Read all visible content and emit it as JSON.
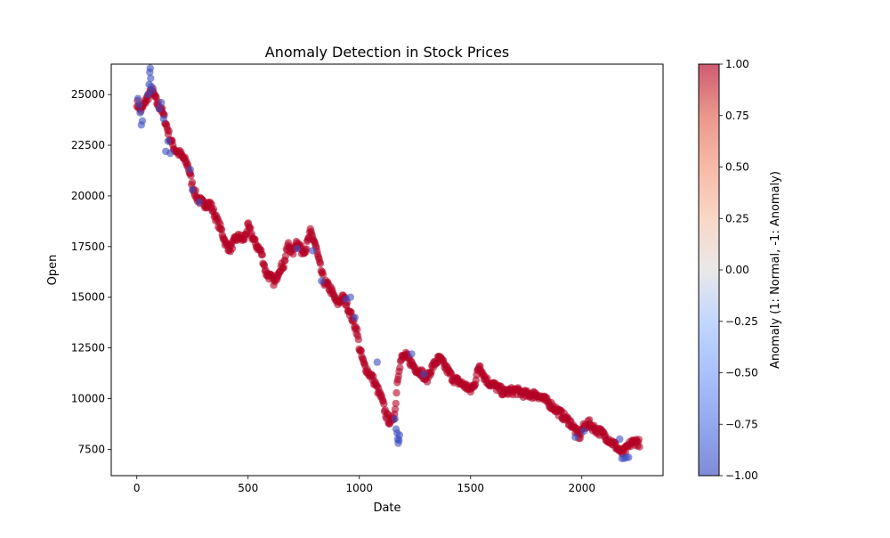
{
  "chart_data": {
    "type": "scatter",
    "title": "Anomaly Detection in Stock Prices",
    "xlabel": "Date",
    "ylabel": "Open",
    "xlim": [
      -115,
      2365
    ],
    "ylim": [
      6200,
      26500
    ],
    "x_ticks": [
      0,
      500,
      1000,
      1500,
      2000
    ],
    "y_ticks": [
      7500,
      10000,
      12500,
      15000,
      17500,
      20000,
      22500,
      25000
    ],
    "x_tick_labels": [
      "0",
      "500",
      "1000",
      "1500",
      "2000"
    ],
    "y_tick_labels": [
      "7500",
      "10000",
      "12500",
      "15000",
      "17500",
      "20000",
      "22500",
      "25000"
    ],
    "grid": false,
    "colormap": "coolwarm",
    "point_alpha": 0.6,
    "colorbar": {
      "label": "Anomaly (1: Normal, -1: Anomaly)",
      "range": [
        -1,
        1
      ],
      "ticks": [
        1.0,
        0.75,
        0.5,
        0.25,
        0.0,
        -0.25,
        -0.5,
        -0.75,
        -1.0
      ],
      "tick_labels": [
        "1.00",
        "0.75",
        "0.50",
        "0.25",
        "0.00",
        "−0.25",
        "−0.50",
        "−0.75",
        "−1.00"
      ]
    },
    "colors": {
      "normal": "#b40426",
      "anomaly": "#3b4cc0"
    },
    "series": [
      {
        "anomaly_value": 1,
        "trend_x": [
          0,
          20,
          40,
          55,
          70,
          90,
          110,
          130,
          150,
          170,
          200,
          230,
          250,
          270,
          300,
          330,
          360,
          380,
          400,
          420,
          440,
          460,
          480,
          500,
          530,
          560,
          580,
          600,
          620,
          640,
          660,
          680,
          700,
          720,
          740,
          760,
          780,
          800,
          820,
          840,
          870,
          900,
          930,
          960,
          990,
          1000,
          1020,
          1040,
          1060,
          1080,
          1100,
          1120,
          1140,
          1160,
          1170,
          1180,
          1190,
          1210,
          1230,
          1260,
          1280,
          1300,
          1330,
          1360,
          1390,
          1420,
          1450,
          1480,
          1500,
          1520,
          1540,
          1560,
          1580,
          1600,
          1650,
          1700,
          1750,
          1800,
          1850,
          1900,
          1950,
          1990,
          2000,
          2030,
          2060,
          2090,
          2120,
          2150,
          2180,
          2200,
          2220,
          2240,
          2260
        ],
        "trend_y": [
          24600,
          24200,
          24700,
          25000,
          25200,
          24600,
          24300,
          23600,
          22800,
          22300,
          22000,
          21500,
          20500,
          19900,
          19600,
          19600,
          18800,
          18300,
          17600,
          17400,
          17800,
          18000,
          17800,
          18500,
          17700,
          17200,
          16200,
          16000,
          15700,
          16400,
          16600,
          17600,
          17200,
          17800,
          17300,
          17400,
          18200,
          17700,
          16700,
          15800,
          15400,
          14700,
          15000,
          14200,
          13300,
          12500,
          11700,
          11300,
          11000,
          10500,
          10000,
          9200,
          8800,
          9300,
          10800,
          11600,
          12000,
          12100,
          11800,
          11400,
          11300,
          10900,
          11600,
          12000,
          11500,
          11000,
          10800,
          10600,
          10400,
          10800,
          11700,
          11100,
          10800,
          10700,
          10300,
          10400,
          10200,
          10200,
          9800,
          9300,
          8800,
          8100,
          8500,
          8800,
          8500,
          8300,
          8000,
          7700,
          7300,
          7500,
          7800,
          7900,
          7800
        ]
      },
      {
        "anomaly_value": -1,
        "points": [
          [
            5,
            24800
          ],
          [
            10,
            24500
          ],
          [
            15,
            24100
          ],
          [
            20,
            23500
          ],
          [
            25,
            23700
          ],
          [
            50,
            25000
          ],
          [
            55,
            25500
          ],
          [
            58,
            26100
          ],
          [
            60,
            26300
          ],
          [
            62,
            25800
          ],
          [
            65,
            25400
          ],
          [
            68,
            25200
          ],
          [
            100,
            24300
          ],
          [
            110,
            24600
          ],
          [
            120,
            23800
          ],
          [
            130,
            22200
          ],
          [
            140,
            22700
          ],
          [
            150,
            22100
          ],
          [
            240,
            21300
          ],
          [
            250,
            20300
          ],
          [
            280,
            19700
          ],
          [
            720,
            17400
          ],
          [
            790,
            17300
          ],
          [
            830,
            15800
          ],
          [
            940,
            14900
          ],
          [
            960,
            15000
          ],
          [
            980,
            14000
          ],
          [
            1080,
            11800
          ],
          [
            1160,
            9000
          ],
          [
            1165,
            8500
          ],
          [
            1170,
            8300
          ],
          [
            1172,
            8000
          ],
          [
            1175,
            7800
          ],
          [
            1178,
            7950
          ],
          [
            1180,
            8200
          ],
          [
            1235,
            12200
          ],
          [
            1290,
            11200
          ],
          [
            1970,
            8100
          ],
          [
            2010,
            8400
          ],
          [
            2170,
            8000
          ],
          [
            2180,
            7050
          ],
          [
            2190,
            7050
          ],
          [
            2200,
            7100
          ],
          [
            2210,
            7100
          ]
        ]
      }
    ]
  }
}
